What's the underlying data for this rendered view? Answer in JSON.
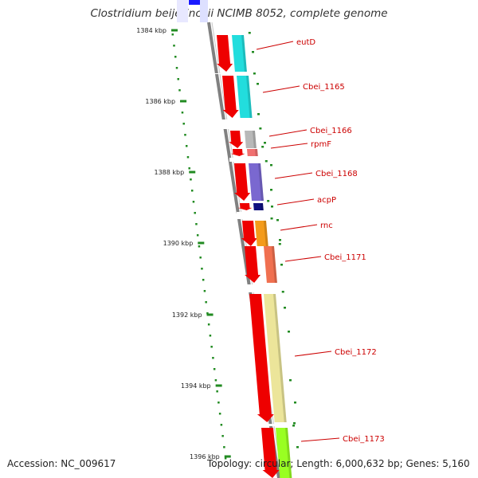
{
  "title": "Clostridium beijerinckii NCIMB 8052, complete genome",
  "footer": {
    "accession": "Accession: NC_009617",
    "topology": "Topology: circular; Length: 6,000,632 bp; Genes: 5,160"
  },
  "colors": {
    "strand_arrow": "#ee0000",
    "label_text": "#cc0000",
    "tick": "#228b22",
    "backbone": "#808080"
  },
  "scale_ticks": [
    {
      "label": "1384 kbp"
    },
    {
      "label": "1386 kbp"
    },
    {
      "label": "1388 kbp"
    },
    {
      "label": "1390 kbp"
    },
    {
      "label": "1392 kbp"
    },
    {
      "label": "1394 kbp"
    },
    {
      "label": "1396 kbp"
    }
  ],
  "genes": [
    {
      "name": "eutD",
      "color": "#22dddd"
    },
    {
      "name": "Cbei_1165",
      "color": "#22dddd"
    },
    {
      "name": "Cbei_1166",
      "color": "#b8b8b8"
    },
    {
      "name": "rpmF",
      "color": "#f07070"
    },
    {
      "name": "Cbei_1168",
      "color": "#7a68d0"
    },
    {
      "name": "acpP",
      "color": "#101080"
    },
    {
      "name": "rnc",
      "color": "#f49b1a"
    },
    {
      "name": "Cbei_1171",
      "color": "#f07050"
    },
    {
      "name": "Cbei_1172",
      "color": "#ece59a"
    },
    {
      "name": "Cbei_1173",
      "color": "#99ff22"
    }
  ]
}
